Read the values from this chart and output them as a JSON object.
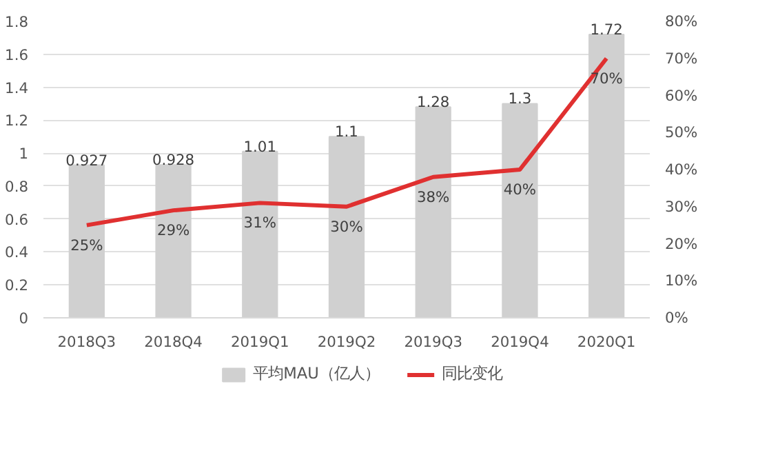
{
  "chart_data": {
    "type": "bar",
    "categories": [
      "2018Q3",
      "2018Q4",
      "2019Q1",
      "2019Q2",
      "2019Q3",
      "2019Q4",
      "2020Q1"
    ],
    "series": [
      {
        "name": "平均MAU（亿人）",
        "color": "#d0d0d0",
        "values": [
          0.927,
          0.928,
          1.01,
          1.1,
          1.28,
          1.3,
          1.72
        ],
        "value_labels": [
          "0.927",
          "0.928",
          "1.01",
          "1.1",
          "1.28",
          "1.3",
          "1.72"
        ]
      },
      {
        "name": "同比变化",
        "type": "line",
        "axis": "y2",
        "color": "#e03030",
        "values": [
          25,
          29,
          31,
          30,
          38,
          40,
          70
        ],
        "value_labels": [
          "25%",
          "29%",
          "31%",
          "30%",
          "38%",
          "40%",
          "70%"
        ]
      }
    ],
    "ylim": [
      0,
      1.8
    ],
    "yticks": [
      0,
      0.2,
      0.4,
      0.6,
      0.8,
      1,
      1.2,
      1.4,
      1.6,
      1.8
    ],
    "y2lim": [
      0,
      80
    ],
    "y2ticks": [
      {
        "value": 0,
        "label": "0%"
      },
      {
        "value": 10,
        "label": "10%"
      },
      {
        "value": 20,
        "label": "20%"
      },
      {
        "value": 30,
        "label": "30%"
      },
      {
        "value": 40,
        "label": "40%"
      },
      {
        "value": 50,
        "label": "50%"
      },
      {
        "value": 60,
        "label": "60%"
      },
      {
        "value": 70,
        "label": "70%"
      },
      {
        "value": 80,
        "label": "80%"
      }
    ],
    "grid": "y",
    "legend": "bottom",
    "marker": "none",
    "line_style": "solid"
  }
}
